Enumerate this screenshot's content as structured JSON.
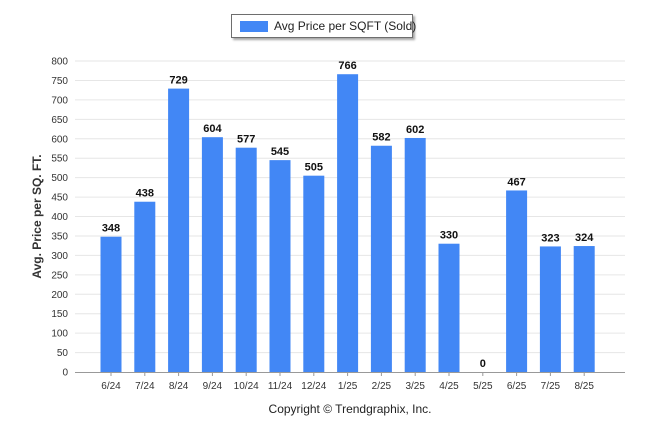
{
  "chart_data": {
    "type": "bar",
    "categories": [
      "6/24",
      "7/24",
      "8/24",
      "9/24",
      "10/24",
      "11/24",
      "12/24",
      "1/25",
      "2/25",
      "3/25",
      "4/25",
      "5/25",
      "6/25",
      "7/25",
      "8/25"
    ],
    "series": [
      {
        "name": "Avg Price per SQFT (Sold)",
        "values": [
          348,
          438,
          729,
          604,
          577,
          545,
          505,
          766,
          582,
          602,
          330,
          0,
          467,
          323,
          324
        ],
        "color": "#4287f5"
      }
    ],
    "title": "",
    "xlabel": "",
    "ylabel": "Avg. Price per SQ. FT.",
    "ylim": [
      0,
      800
    ],
    "yticks": [
      0,
      50,
      100,
      150,
      200,
      250,
      300,
      350,
      400,
      450,
      500,
      550,
      600,
      650,
      700,
      750,
      800
    ],
    "grid": true,
    "legend": "top-center"
  },
  "footer": {
    "copyright": "Copyright © Trendgraphix, Inc."
  }
}
